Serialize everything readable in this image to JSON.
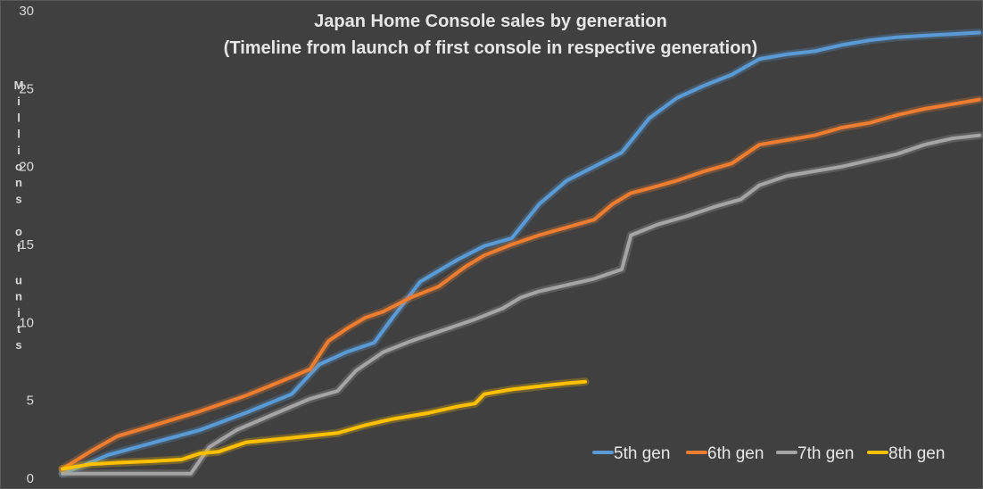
{
  "chart_data": {
    "type": "line",
    "title": "Japan Home Console sales by generation",
    "subtitle": "(Timeline from launch of first console in respective generation)",
    "ylabel": "Millions of units",
    "xlabel": "",
    "ylim": [
      0,
      30
    ],
    "yticks": [
      "0",
      "5",
      "10",
      "15",
      "20",
      "25",
      "30"
    ],
    "x_range": [
      0,
      100
    ],
    "grid": false,
    "legend_position": "bottom-right",
    "series": [
      {
        "name": "5th gen",
        "color": "#5b9bd5",
        "x": [
          0,
          3,
          5,
          10,
          15,
          20,
          25,
          28,
          31,
          34,
          36,
          39,
          43,
          46,
          49,
          52,
          55,
          58,
          61,
          64,
          67,
          70,
          73,
          76,
          79,
          82,
          85,
          88,
          91,
          94,
          97,
          100
        ],
        "values": [
          0.3,
          1.0,
          1.5,
          2.3,
          3.1,
          4.2,
          5.4,
          7.3,
          8.1,
          8.7,
          10.3,
          12.6,
          14.0,
          14.9,
          15.4,
          17.6,
          19.1,
          20.0,
          20.9,
          23.1,
          24.4,
          25.2,
          25.9,
          26.9,
          27.2,
          27.4,
          27.8,
          28.1,
          28.3,
          28.4,
          28.5,
          28.6
        ]
      },
      {
        "name": "6th gen",
        "color": "#ed7d31",
        "x": [
          0,
          3,
          6,
          10,
          15,
          20,
          25,
          27,
          29,
          31,
          33,
          35,
          38,
          41,
          44,
          46,
          49,
          52,
          55,
          58,
          60,
          62,
          64,
          67,
          70,
          73,
          76,
          79,
          82,
          85,
          88,
          91,
          94,
          97,
          100
        ],
        "values": [
          0.6,
          1.7,
          2.7,
          3.4,
          4.3,
          5.3,
          6.5,
          7.0,
          8.8,
          9.6,
          10.3,
          10.7,
          11.6,
          12.3,
          13.6,
          14.3,
          15.0,
          15.6,
          16.1,
          16.6,
          17.6,
          18.3,
          18.6,
          19.1,
          19.7,
          20.2,
          21.4,
          21.7,
          22.0,
          22.5,
          22.8,
          23.3,
          23.7,
          24.0,
          24.3
        ]
      },
      {
        "name": "7th gen",
        "color": "#a5a5a5",
        "x": [
          0,
          5,
          10,
          14,
          16,
          19,
          23,
          27,
          30,
          32,
          35,
          38,
          42,
          45,
          48,
          50,
          52,
          55,
          58,
          61,
          62,
          65,
          68,
          71,
          74,
          76,
          79,
          82,
          85,
          88,
          91,
          94,
          97,
          100
        ],
        "values": [
          0.3,
          0.3,
          0.3,
          0.3,
          2.0,
          3.1,
          4.1,
          5.1,
          5.6,
          6.9,
          8.1,
          8.8,
          9.6,
          10.2,
          10.9,
          11.6,
          12.0,
          12.4,
          12.8,
          13.4,
          15.6,
          16.3,
          16.8,
          17.4,
          17.9,
          18.8,
          19.4,
          19.7,
          20.0,
          20.4,
          20.8,
          21.4,
          21.8,
          22.0
        ]
      },
      {
        "name": "8th gen",
        "color": "#ffc000",
        "x": [
          0,
          3,
          6,
          10,
          13,
          15,
          17,
          20,
          25,
          30,
          33,
          36,
          40,
          43,
          45,
          46,
          49,
          52,
          55,
          57
        ],
        "values": [
          0.6,
          0.9,
          1.0,
          1.1,
          1.2,
          1.6,
          1.7,
          2.3,
          2.6,
          2.9,
          3.4,
          3.8,
          4.2,
          4.6,
          4.8,
          5.4,
          5.7,
          5.9,
          6.1,
          6.2
        ]
      }
    ]
  }
}
